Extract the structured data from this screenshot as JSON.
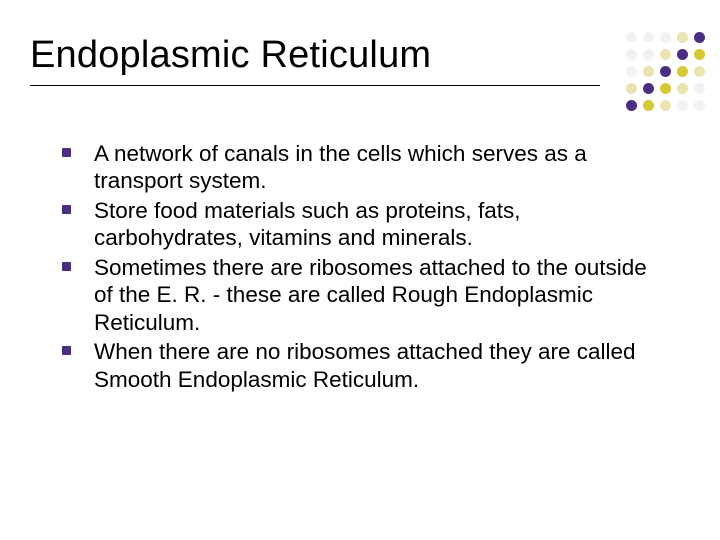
{
  "slide": {
    "title": "Endoplasmic Reticulum",
    "title_fontsize": 38,
    "title_color": "#000000",
    "underline_color": "#000000",
    "background_color": "#ffffff",
    "body_fontsize": 22.5,
    "body_color": "#000000",
    "bullet_marker_color": "#4b2e83",
    "bullets": [
      "A network of canals in the cells which serves as a transport system.",
      "Store food materials such as proteins, fats, carbohydrates, vitamins and minerals.",
      "Sometimes there are ribosomes attached to the outside of the E. R. - these are called Rough Endoplasmic Reticulum.",
      "When there are no ribosomes attached they are called Smooth Endoplasmic Reticulum."
    ]
  },
  "decor": {
    "grid_cols": 5,
    "grid_rows": 5,
    "dot_size": 11,
    "colors": [
      "#f2f2f2",
      "#f2f2f2",
      "#f2f2f2",
      "#eae4b0",
      "#4b2e83",
      "#f2f2f2",
      "#f2f2f2",
      "#eae4b0",
      "#4b2e83",
      "#d7c933",
      "#f2f2f2",
      "#eae4b0",
      "#4b2e83",
      "#d7c933",
      "#eae4b0",
      "#eae4b0",
      "#4b2e83",
      "#d7c933",
      "#eae4b0",
      "#f2f2f2",
      "#4b2e83",
      "#d7c933",
      "#eae4b0",
      "#f2f2f2",
      "#f2f2f2"
    ]
  }
}
